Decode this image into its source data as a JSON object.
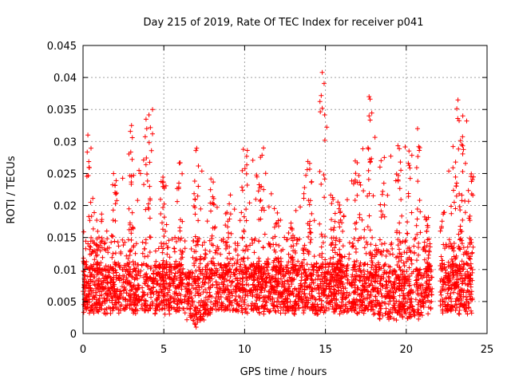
{
  "chart_data": {
    "type": "scatter",
    "title": "Day 215 of 2019, Rate Of TEC Index for receiver p041",
    "xlabel": "GPS time / hours",
    "ylabel": "ROTI / TECUs",
    "xlim": [
      0,
      25
    ],
    "ylim": [
      0,
      0.045
    ],
    "grid": true,
    "legend": "none",
    "marker": "+",
    "marker_color": "#ff0000",
    "x_ticks": [
      0,
      5,
      10,
      15,
      20,
      25
    ],
    "x_tick_labels": [
      "0",
      "5",
      "10",
      "15",
      "20",
      "25"
    ],
    "y_ticks": [
      0,
      0.005,
      0.01,
      0.015,
      0.02,
      0.025,
      0.03,
      0.035,
      0.04,
      0.045
    ],
    "y_tick_labels": [
      "0",
      "0.005",
      "0.01",
      "0.015",
      "0.02",
      "0.025",
      "0.03",
      "0.035",
      "0.04",
      "0.045"
    ],
    "density_envelope": [
      {
        "x": 0.0,
        "floor": 0.003,
        "peak": 0.017
      },
      {
        "x": 0.4,
        "floor": 0.003,
        "peak": 0.03
      },
      {
        "x": 1.0,
        "floor": 0.003,
        "peak": 0.019
      },
      {
        "x": 2.0,
        "floor": 0.003,
        "peak": 0.025
      },
      {
        "x": 3.0,
        "floor": 0.003,
        "peak": 0.032
      },
      {
        "x": 4.0,
        "floor": 0.003,
        "peak": 0.035
      },
      {
        "x": 5.0,
        "floor": 0.003,
        "peak": 0.024
      },
      {
        "x": 6.0,
        "floor": 0.003,
        "peak": 0.028
      },
      {
        "x": 7.0,
        "floor": 0.001,
        "peak": 0.029
      },
      {
        "x": 8.0,
        "floor": 0.003,
        "peak": 0.024
      },
      {
        "x": 9.0,
        "floor": 0.003,
        "peak": 0.022
      },
      {
        "x": 10.0,
        "floor": 0.003,
        "peak": 0.029
      },
      {
        "x": 11.0,
        "floor": 0.003,
        "peak": 0.029
      },
      {
        "x": 12.0,
        "floor": 0.003,
        "peak": 0.02
      },
      {
        "x": 13.0,
        "floor": 0.003,
        "peak": 0.018
      },
      {
        "x": 14.0,
        "floor": 0.003,
        "peak": 0.027
      },
      {
        "x": 14.8,
        "floor": 0.003,
        "peak": 0.041
      },
      {
        "x": 15.5,
        "floor": 0.003,
        "peak": 0.022
      },
      {
        "x": 16.0,
        "floor": 0.003,
        "peak": 0.021
      },
      {
        "x": 17.0,
        "floor": 0.003,
        "peak": 0.029
      },
      {
        "x": 17.8,
        "floor": 0.003,
        "peak": 0.037
      },
      {
        "x": 18.5,
        "floor": 0.002,
        "peak": 0.028
      },
      {
        "x": 19.5,
        "floor": 0.002,
        "peak": 0.03
      },
      {
        "x": 20.2,
        "floor": 0.002,
        "peak": 0.029
      },
      {
        "x": 20.7,
        "floor": 0.002,
        "peak": 0.032
      },
      {
        "x": 21.3,
        "floor": 0.003,
        "peak": 0.019
      },
      {
        "x": 22.2,
        "floor": 0.003,
        "peak": 0.019
      },
      {
        "x": 22.8,
        "floor": 0.003,
        "peak": 0.031
      },
      {
        "x": 23.2,
        "floor": 0.003,
        "peak": 0.036
      },
      {
        "x": 23.6,
        "floor": 0.003,
        "peak": 0.034
      },
      {
        "x": 24.0,
        "floor": 0.003,
        "peak": 0.025
      }
    ],
    "gaps": [
      [
        21.6,
        22.1
      ]
    ],
    "notable_points": [
      {
        "x": 4.3,
        "y": 0.035
      },
      {
        "x": 4.3,
        "y": 0.0312
      },
      {
        "x": 3.0,
        "y": 0.0325
      },
      {
        "x": 14.8,
        "y": 0.0408
      },
      {
        "x": 14.8,
        "y": 0.0352
      },
      {
        "x": 17.7,
        "y": 0.037
      },
      {
        "x": 17.7,
        "y": 0.034
      },
      {
        "x": 23.2,
        "y": 0.0365
      },
      {
        "x": 23.5,
        "y": 0.034
      },
      {
        "x": 20.7,
        "y": 0.032
      },
      {
        "x": 0.3,
        "y": 0.031
      },
      {
        "x": 7.0,
        "y": 0.001
      }
    ]
  }
}
